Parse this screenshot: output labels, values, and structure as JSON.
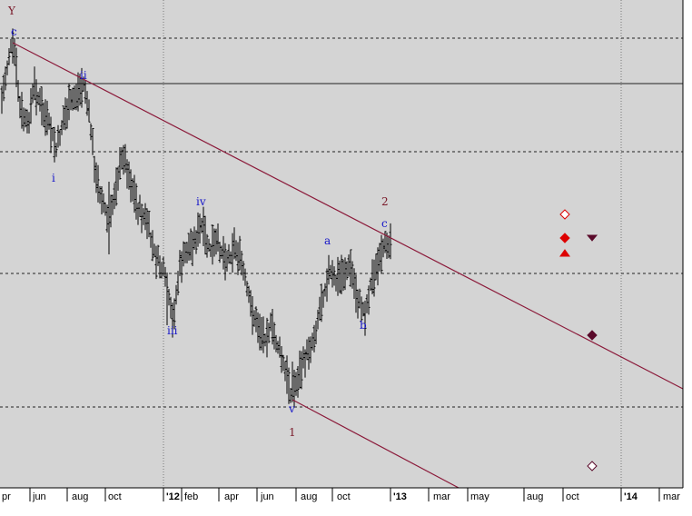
{
  "colors": {
    "plot_bg": "#d4d4d4",
    "wave_label": "#1515c8",
    "degree_label": "#7a1a2a",
    "trendline": "#8b1a3a",
    "bars": "#000000",
    "marker_red": "#dd0000",
    "marker_maroon": "#5a0a2a"
  },
  "chart_data": {
    "type": "bar",
    "subtype": "ohlc price bars with Elliott wave labels",
    "title": "",
    "x_ticks": [
      "pr",
      "jun",
      "aug",
      "oct",
      "'12",
      "feb",
      "apr",
      "jun",
      "aug",
      "oct",
      "'13",
      "mar",
      "may",
      "aug",
      "oct",
      "'14",
      "mar"
    ],
    "y_ticks": [],
    "grid": {
      "vertical_dotted": true,
      "horizontal_dashed": true,
      "horizontal_solid": true
    },
    "wave_labels": [
      {
        "text": "Y",
        "color": "degree_label"
      },
      {
        "text": "c",
        "color": "wave_label"
      },
      {
        "text": "ii",
        "color": "wave_label"
      },
      {
        "text": "i",
        "color": "wave_label"
      },
      {
        "text": "iv",
        "color": "wave_label"
      },
      {
        "text": "iii",
        "color": "wave_label"
      },
      {
        "text": "v",
        "color": "wave_label"
      },
      {
        "text": "1",
        "color": "degree_label"
      },
      {
        "text": "a",
        "color": "wave_label"
      },
      {
        "text": "b",
        "color": "wave_label"
      },
      {
        "text": "2",
        "color": "degree_label"
      },
      {
        "text": "c",
        "color": "wave_label"
      }
    ],
    "markers": [
      {
        "shape": "diamond",
        "style": "hollow",
        "color": "marker_red"
      },
      {
        "shape": "diamond",
        "style": "filled",
        "color": "marker_red"
      },
      {
        "shape": "triangle-up",
        "style": "filled",
        "color": "marker_red"
      },
      {
        "shape": "triangle-down",
        "style": "filled",
        "color": "marker_maroon"
      },
      {
        "shape": "diamond",
        "style": "filled",
        "color": "marker_maroon"
      },
      {
        "shape": "diamond",
        "style": "hollow",
        "color": "marker_maroon"
      }
    ]
  }
}
